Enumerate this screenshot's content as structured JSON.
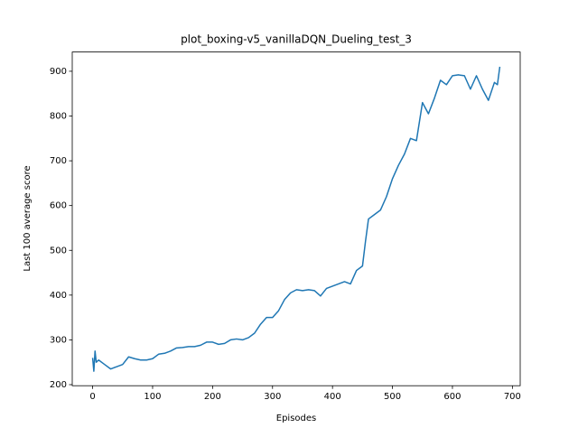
{
  "chart_data": {
    "type": "line",
    "title": "plot_boxing-v5_vanillaDQN_Dueling_test_3",
    "xlabel": "Episodes",
    "ylabel": "Last 100 average score",
    "x": [
      0,
      2,
      4,
      6,
      10,
      20,
      30,
      40,
      50,
      60,
      70,
      80,
      90,
      100,
      110,
      120,
      130,
      140,
      150,
      160,
      170,
      180,
      190,
      200,
      210,
      220,
      230,
      240,
      250,
      260,
      270,
      280,
      290,
      300,
      310,
      320,
      330,
      340,
      350,
      360,
      370,
      380,
      390,
      400,
      410,
      420,
      430,
      440,
      450,
      455,
      460,
      470,
      480,
      490,
      500,
      510,
      520,
      530,
      540,
      550,
      560,
      570,
      580,
      590,
      600,
      610,
      620,
      630,
      640,
      650,
      660,
      670,
      675,
      679
    ],
    "series": [
      {
        "name": "score",
        "color": "#1f77b4",
        "values": [
          260,
          230,
          275,
          250,
          255,
          245,
          235,
          240,
          245,
          262,
          258,
          255,
          255,
          258,
          268,
          270,
          275,
          282,
          283,
          285,
          285,
          288,
          295,
          295,
          290,
          292,
          300,
          302,
          300,
          305,
          315,
          335,
          350,
          350,
          365,
          390,
          405,
          412,
          410,
          412,
          410,
          398,
          415,
          420,
          425,
          430,
          425,
          455,
          465,
          520,
          570,
          580,
          590,
          620,
          660,
          690,
          715,
          750,
          745,
          830,
          805,
          840,
          880,
          870,
          890,
          892,
          890,
          860,
          890,
          860,
          835,
          875,
          870,
          910
        ]
      }
    ],
    "xlim": [
      -34,
      713
    ],
    "ylim": [
      197.6,
      943
    ],
    "xticks": [
      0,
      100,
      200,
      300,
      400,
      500,
      600,
      700
    ],
    "yticks": [
      200,
      300,
      400,
      500,
      600,
      700,
      800,
      900
    ]
  }
}
